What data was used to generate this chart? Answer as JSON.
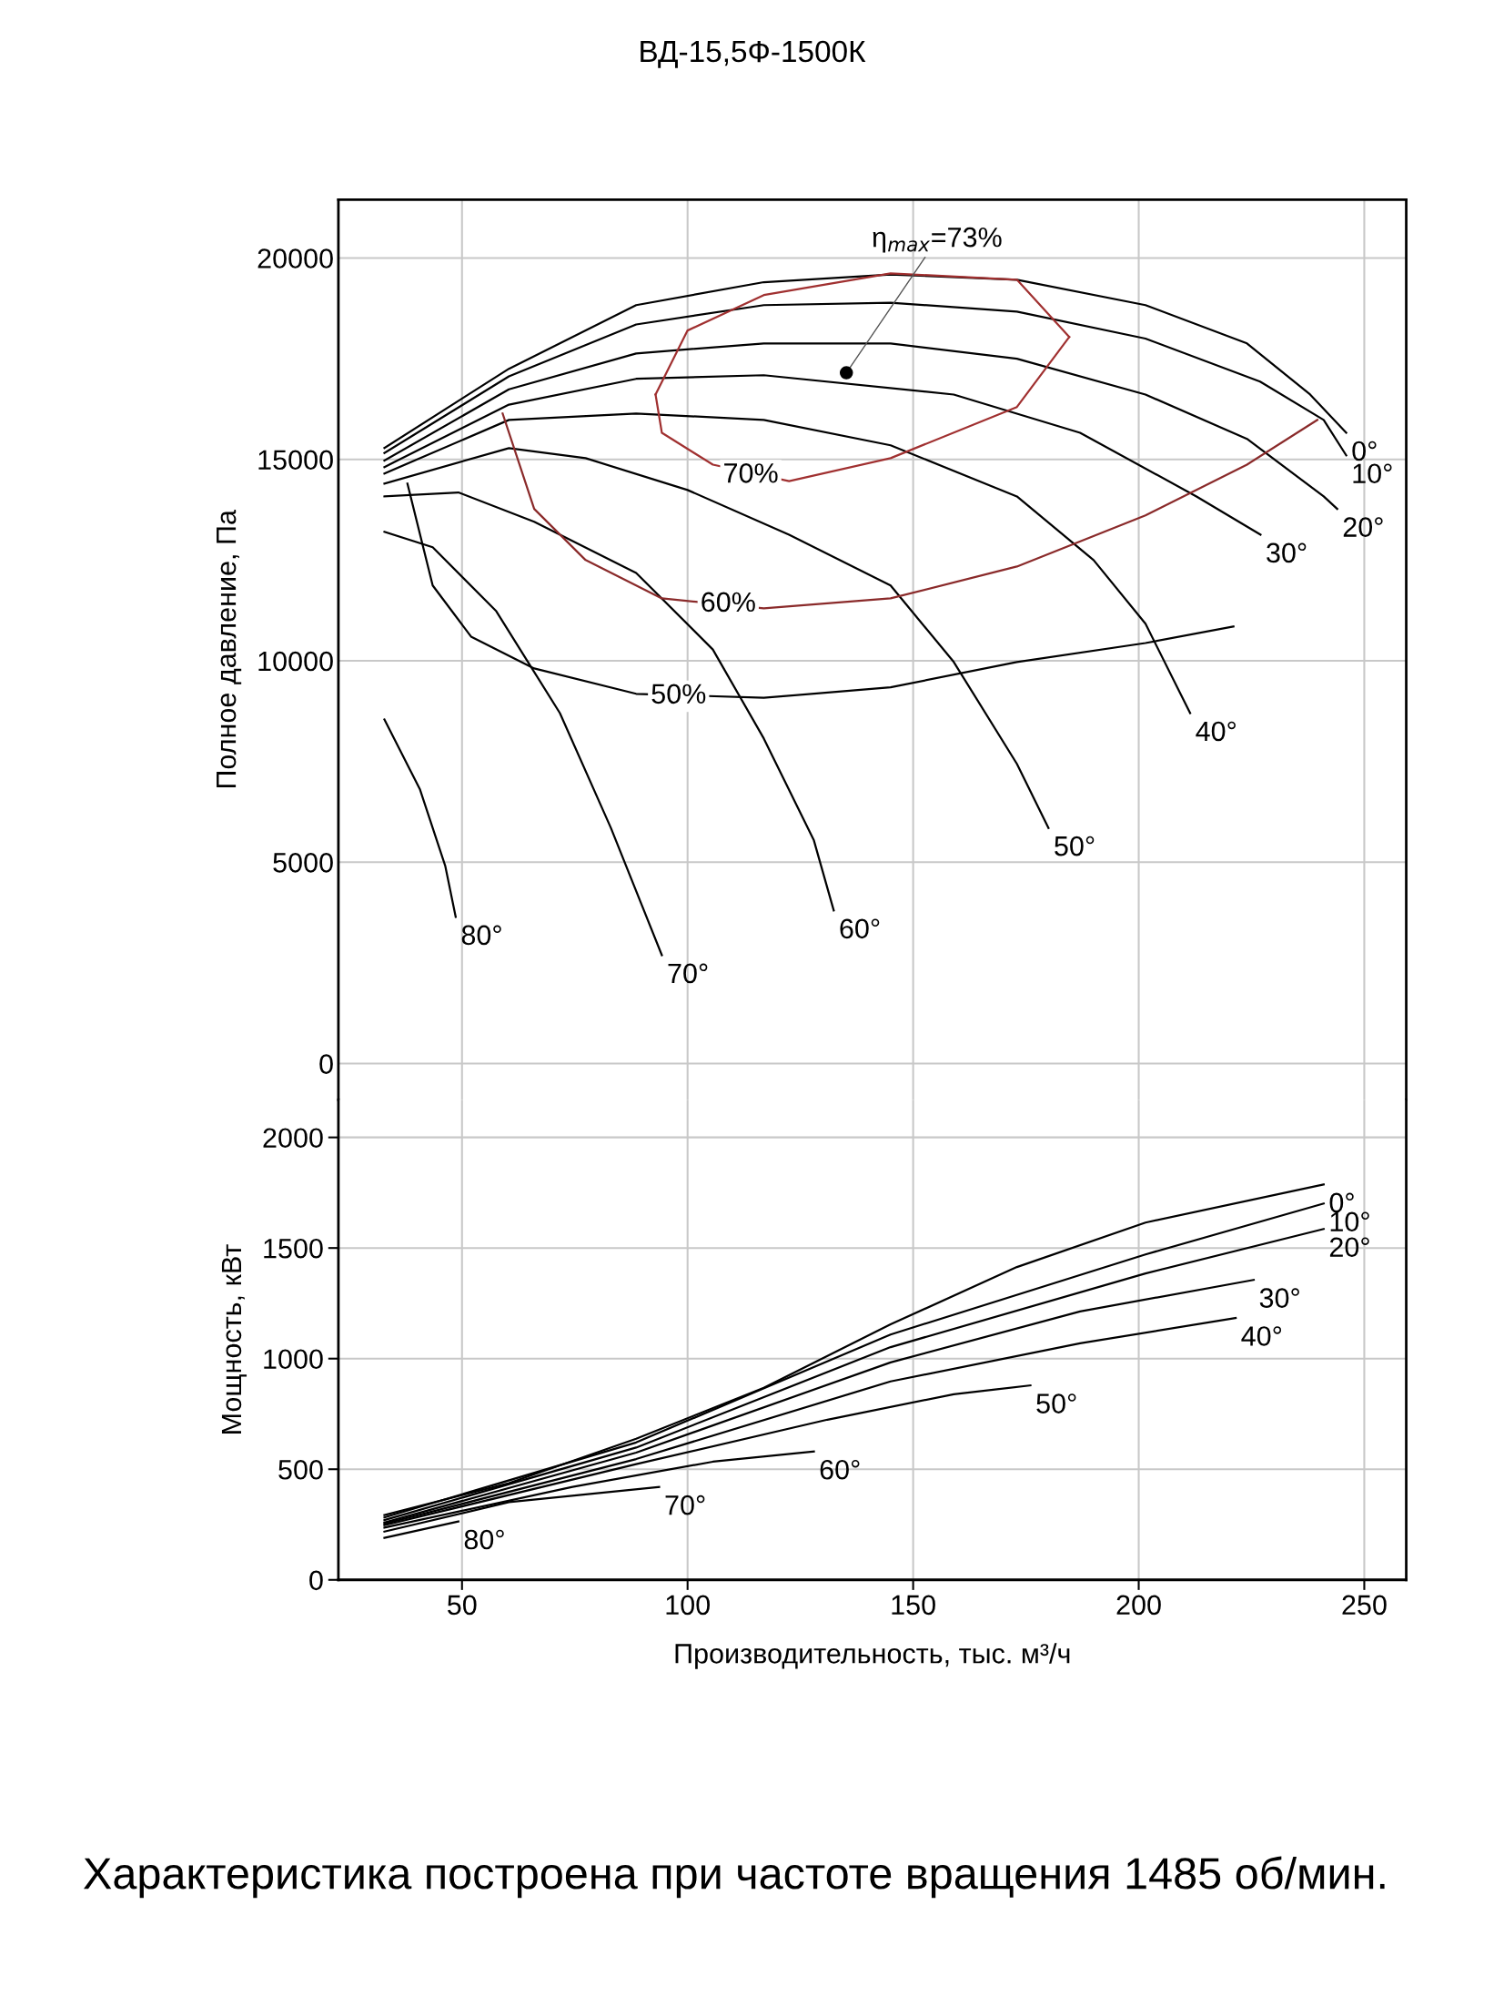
{
  "chart_data": [
    {
      "type": "line",
      "title": "ВД-15,5Ф-1500К",
      "ylabel": "Полное давление, Па",
      "xlim": [
        22.6,
        259.3
      ],
      "ylim": [
        -900,
        21450
      ],
      "xticks": [
        50,
        100,
        150,
        200,
        250
      ],
      "yticks": [
        0,
        5000,
        10000,
        15000,
        20000
      ],
      "grid": true,
      "tick_labels": "y",
      "series": [
        {
          "name": "0°",
          "color": "#000000",
          "x": [
            32.8,
            60.4,
            88.6,
            116.9,
            145,
            173,
            201.5,
            224,
            238,
            246
          ],
          "values": [
            15285,
            17250,
            18830,
            19400,
            19590,
            19460,
            18830,
            17880,
            16610,
            15660
          ]
        },
        {
          "name": "10°",
          "color": "#000000",
          "x": [
            32.8,
            60.4,
            88.6,
            116.9,
            145,
            173,
            201.5,
            226.9,
            241,
            246
          ],
          "values": [
            15160,
            17060,
            18350,
            18830,
            18890,
            18670,
            18000,
            16930,
            15980,
            15100
          ]
        },
        {
          "name": "20°",
          "color": "#000000",
          "x": [
            32.8,
            60.4,
            88.6,
            116.9,
            145,
            173,
            201.5,
            224,
            241,
            244
          ],
          "values": [
            14970,
            16740,
            17630,
            17880,
            17880,
            17500,
            16610,
            15510,
            14080,
            13770
          ]
        },
        {
          "name": "30°",
          "color": "#000000",
          "x": [
            32.8,
            60.4,
            88.6,
            116.9,
            159,
            187,
            212.8,
            227
          ],
          "values": [
            14810,
            16360,
            17000,
            17090,
            16610,
            15660,
            14080,
            13130
          ]
        },
        {
          "name": "40°",
          "color": "#000000",
          "x": [
            32.8,
            60.4,
            88.6,
            116.9,
            145,
            173,
            190,
            201.5,
            211.4
          ],
          "values": [
            14650,
            15980,
            16140,
            15980,
            15350,
            14080,
            12500,
            10920,
            8700
          ]
        },
        {
          "name": "50°",
          "color": "#000000",
          "x": [
            32.8,
            60.4,
            77.4,
            100,
            122.5,
            145,
            159,
            173,
            180
          ],
          "values": [
            14400,
            15280,
            15030,
            14240,
            13130,
            11870,
            9970,
            7440,
            5850
          ]
        },
        {
          "name": "60°",
          "color": "#000000",
          "x": [
            32.8,
            49.2,
            66,
            88.6,
            105.6,
            116.9,
            128,
            132.4
          ],
          "values": [
            14080,
            14180,
            13450,
            12180,
            10280,
            8070,
            5540,
            3800
          ]
        },
        {
          "name": "70°",
          "color": "#000000",
          "x": [
            32.8,
            43.5,
            57.6,
            71.7,
            83,
            94.3
          ],
          "values": [
            13200,
            12820,
            11230,
            8700,
            5850,
            2690
          ]
        },
        {
          "name": "80°",
          "color": "#000000",
          "x": [
            32.8,
            40.7,
            46.3,
            48.6
          ],
          "values": [
            8540,
            6800,
            4900,
            3640
          ]
        },
        {
          "color": "#a03030",
          "x": [
            92.9,
            100,
            116.9,
            145,
            173,
            184.6
          ],
          "values": [
            16610,
            18200,
            19080,
            19620,
            19460,
            18040
          ]
        },
        {
          "color": "#a03030",
          "x": [
            92.9,
            94.3,
            105.6,
            122.5,
            145,
            173,
            184.6
          ],
          "values": [
            16610,
            15660,
            14870,
            14460,
            15030,
            16300,
            18040
          ]
        },
        {
          "color": "#8a2a2a",
          "x": [
            59,
            66,
            77.4,
            94.3,
            116.9,
            145,
            173,
            201.5,
            224,
            239.6
          ],
          "values": [
            16140,
            13770,
            12500,
            11550,
            11300,
            11550,
            12340,
            13610,
            14870,
            15980
          ]
        },
        {
          "color": "#000000",
          "x": [
            37.9,
            43.5,
            52,
            66,
            88.6,
            116.9,
            145,
            173,
            201.5,
            221
          ],
          "values": [
            14400,
            11870,
            10600,
            9810,
            9180,
            9080,
            9340,
            9970,
            10440,
            10850
          ]
        },
        {
          "type": "scatter",
          "name": "η$_{max}$=73%",
          "color": "#000000",
          "marker": "circle",
          "x": [
            135.2
          ],
          "values": [
            17150
          ]
        }
      ],
      "annotations": [
        {
          "text": "70%",
          "x": 114,
          "y": 14600
        },
        {
          "text": "60%",
          "x": 109,
          "y": 11400
        },
        {
          "text": "50%",
          "x": 98,
          "y": 9120
        }
      ]
    },
    {
      "type": "line",
      "xlabel": "Производительность, тыс. м³/ч",
      "ylabel": "Мощность, кВт",
      "xlim": [
        22.6,
        259.3
      ],
      "ylim": [
        0,
        2170
      ],
      "xticks": [
        50,
        100,
        150,
        200,
        250
      ],
      "yticks": [
        0,
        500,
        1000,
        1500,
        2000
      ],
      "grid": true,
      "series": [
        {
          "name": "0°",
          "color": "#000000",
          "x": [
            32.8,
            60.4,
            88.6,
            116.9,
            145,
            173,
            201.5,
            241
          ],
          "values": [
            293,
            437,
            638,
            868,
            1155,
            1414,
            1615,
            1787
          ]
        },
        {
          "name": "10°",
          "color": "#000000",
          "x": [
            32.8,
            88.6,
            145,
            201.5,
            241
          ],
          "values": [
            282,
            621,
            1109,
            1471,
            1701
          ]
        },
        {
          "name": "20°",
          "color": "#000000",
          "x": [
            32.8,
            88.6,
            145,
            201.5,
            241
          ],
          "values": [
            270,
            598,
            1052,
            1385,
            1586
          ]
        },
        {
          "name": "30°",
          "color": "#000000",
          "x": [
            32.8,
            88.6,
            145,
            187,
            225.5
          ],
          "values": [
            259,
            575,
            983,
            1213,
            1356
          ]
        },
        {
          "name": "40°",
          "color": "#000000",
          "x": [
            32.8,
            88.6,
            145,
            187,
            221.5
          ],
          "values": [
            253,
            546,
            897,
            1069,
            1184
          ]
        },
        {
          "name": "50°",
          "color": "#000000",
          "x": [
            32.8,
            88.6,
            131,
            159,
            176
          ],
          "values": [
            247,
            523,
            724,
            839,
            879
          ]
        },
        {
          "name": "60°",
          "color": "#000000",
          "x": [
            32.8,
            74.5,
            105.6,
            128
          ],
          "values": [
            236,
            420,
            534,
            580
          ]
        },
        {
          "name": "70°",
          "color": "#000000",
          "x": [
            32.8,
            60.4,
            93.7
          ],
          "values": [
            218,
            351,
            420
          ]
        },
        {
          "name": "80°",
          "color": "#000000",
          "x": [
            32.8,
            49.2
          ],
          "values": [
            190,
            264
          ]
        }
      ],
      "annotations": [
        "Характеристика построена при частоте вращения 1485 об/мин."
      ]
    }
  ]
}
